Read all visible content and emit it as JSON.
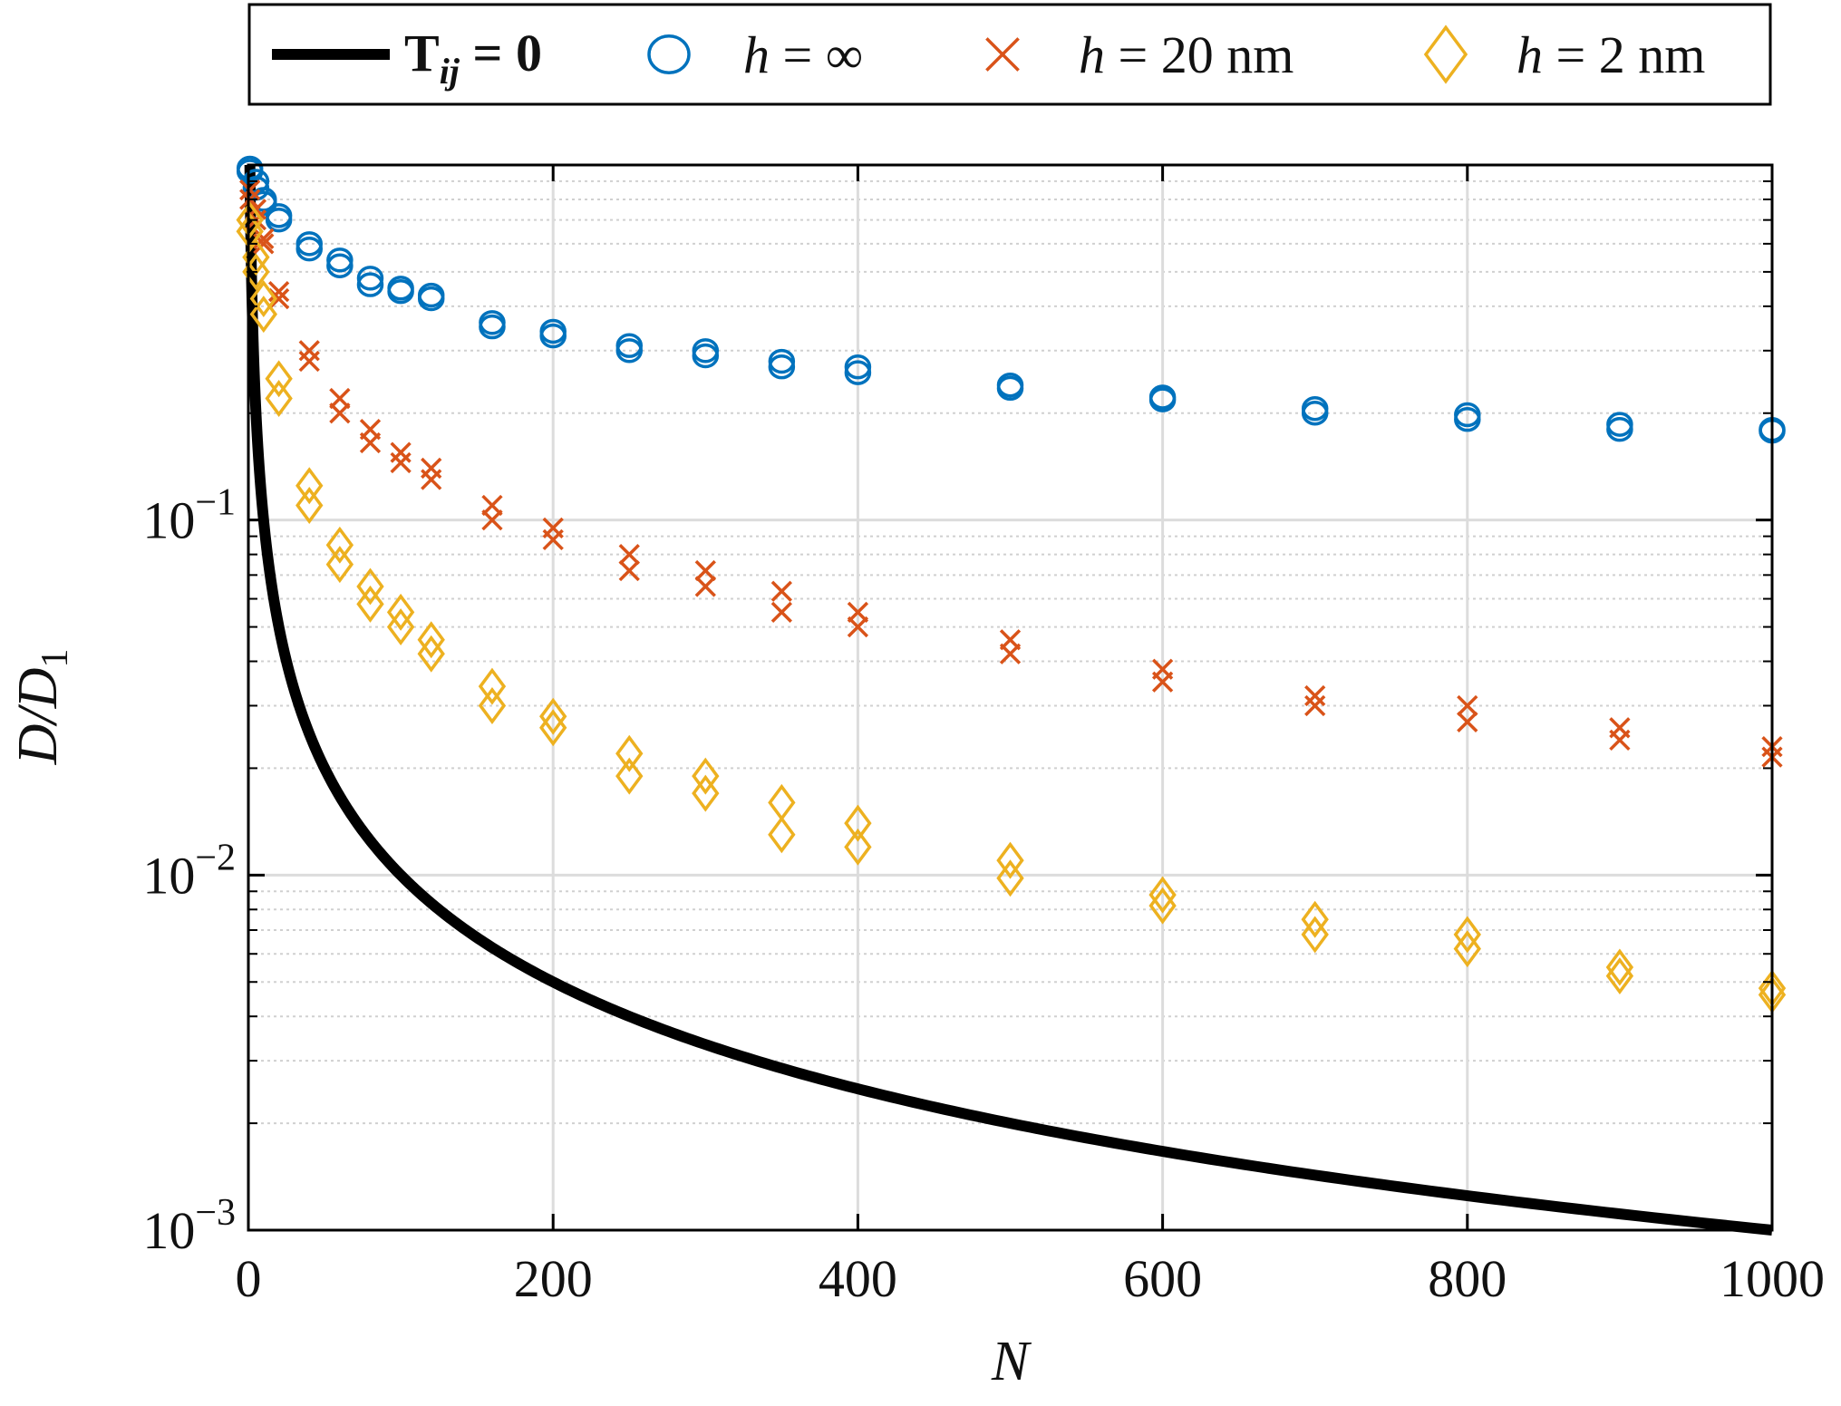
{
  "chart_data": {
    "type": "scatter",
    "xlabel": "N",
    "ylabel": "D/D_1",
    "ylabel_parts": {
      "main": "D/D",
      "sub": "1"
    },
    "x_scale": "linear",
    "y_scale": "log",
    "xlim": [
      0,
      1000
    ],
    "ylim": [
      0.001,
      1
    ],
    "x_ticks": [
      0,
      200,
      400,
      600,
      800,
      1000
    ],
    "x_tick_labels": [
      "0",
      "200",
      "400",
      "600",
      "800",
      "1000"
    ],
    "y_ticks": [
      0.001,
      0.01,
      0.1
    ],
    "y_tick_labels": [
      {
        "base": "10",
        "exp": "−3"
      },
      {
        "base": "10",
        "exp": "−2"
      },
      {
        "base": "10",
        "exp": "−1"
      }
    ],
    "grid": true,
    "legend_position": "top-outside",
    "series": [
      {
        "name": "T_ij = 0",
        "legend": {
          "main": "T",
          "sub": "ij",
          "rest": " = 0"
        },
        "kind": "line",
        "formula": "1/N",
        "color": "#000000",
        "x_range": [
          1,
          1000
        ]
      },
      {
        "name": "h = ∞",
        "legend": {
          "italic": "h",
          "rest": " = ∞"
        },
        "kind": "marker",
        "marker": "circle",
        "color": "#0072BD",
        "points": [
          [
            1,
            0.98
          ],
          [
            1,
            0.96
          ],
          [
            5,
            0.9
          ],
          [
            5,
            0.86
          ],
          [
            10,
            0.8
          ],
          [
            10,
            0.78
          ],
          [
            20,
            0.72
          ],
          [
            20,
            0.7
          ],
          [
            40,
            0.6
          ],
          [
            40,
            0.58
          ],
          [
            60,
            0.54
          ],
          [
            60,
            0.52
          ],
          [
            80,
            0.48
          ],
          [
            80,
            0.46
          ],
          [
            100,
            0.45
          ],
          [
            100,
            0.44
          ],
          [
            120,
            0.43
          ],
          [
            120,
            0.42
          ],
          [
            160,
            0.36
          ],
          [
            160,
            0.35
          ],
          [
            200,
            0.34
          ],
          [
            200,
            0.33
          ],
          [
            250,
            0.31
          ],
          [
            250,
            0.3
          ],
          [
            300,
            0.3
          ],
          [
            300,
            0.29
          ],
          [
            350,
            0.28
          ],
          [
            350,
            0.27
          ],
          [
            400,
            0.27
          ],
          [
            400,
            0.26
          ],
          [
            500,
            0.24
          ],
          [
            500,
            0.235
          ],
          [
            600,
            0.222
          ],
          [
            600,
            0.218
          ],
          [
            700,
            0.206
          ],
          [
            700,
            0.2
          ],
          [
            800,
            0.198
          ],
          [
            800,
            0.192
          ],
          [
            900,
            0.186
          ],
          [
            900,
            0.18
          ],
          [
            1000,
            0.18
          ],
          [
            1000,
            0.178
          ]
        ]
      },
      {
        "name": "h = 20 nm",
        "legend": {
          "italic": "h",
          "rest": " = 20 nm"
        },
        "kind": "marker",
        "marker": "x",
        "color": "#D95319",
        "points": [
          [
            1,
            0.85
          ],
          [
            1,
            0.8
          ],
          [
            5,
            0.75
          ],
          [
            5,
            0.7
          ],
          [
            10,
            0.62
          ],
          [
            10,
            0.6
          ],
          [
            20,
            0.44
          ],
          [
            20,
            0.42
          ],
          [
            40,
            0.3
          ],
          [
            40,
            0.28
          ],
          [
            60,
            0.22
          ],
          [
            60,
            0.2
          ],
          [
            80,
            0.18
          ],
          [
            80,
            0.165
          ],
          [
            100,
            0.155
          ],
          [
            100,
            0.145
          ],
          [
            120,
            0.14
          ],
          [
            120,
            0.13
          ],
          [
            160,
            0.11
          ],
          [
            160,
            0.1
          ],
          [
            200,
            0.095
          ],
          [
            200,
            0.088
          ],
          [
            250,
            0.08
          ],
          [
            250,
            0.072
          ],
          [
            300,
            0.072
          ],
          [
            300,
            0.065
          ],
          [
            350,
            0.063
          ],
          [
            350,
            0.055
          ],
          [
            400,
            0.055
          ],
          [
            400,
            0.05
          ],
          [
            500,
            0.046
          ],
          [
            500,
            0.042
          ],
          [
            600,
            0.038
          ],
          [
            600,
            0.035
          ],
          [
            700,
            0.032
          ],
          [
            700,
            0.03
          ],
          [
            800,
            0.03
          ],
          [
            800,
            0.027
          ],
          [
            900,
            0.026
          ],
          [
            900,
            0.024
          ],
          [
            1000,
            0.023
          ],
          [
            1000,
            0.0215
          ]
        ]
      },
      {
        "name": "h = 2 nm",
        "legend": {
          "italic": "h",
          "rest": " = 2 nm"
        },
        "kind": "marker",
        "marker": "diamond",
        "color": "#EDB120",
        "points": [
          [
            1,
            0.7
          ],
          [
            1,
            0.65
          ],
          [
            5,
            0.55
          ],
          [
            5,
            0.5
          ],
          [
            10,
            0.42
          ],
          [
            10,
            0.38
          ],
          [
            20,
            0.25
          ],
          [
            20,
            0.22
          ],
          [
            40,
            0.125
          ],
          [
            40,
            0.11
          ],
          [
            60,
            0.085
          ],
          [
            60,
            0.075
          ],
          [
            80,
            0.065
          ],
          [
            80,
            0.058
          ],
          [
            100,
            0.055
          ],
          [
            100,
            0.05
          ],
          [
            120,
            0.046
          ],
          [
            120,
            0.042
          ],
          [
            160,
            0.034
          ],
          [
            160,
            0.03
          ],
          [
            200,
            0.028
          ],
          [
            200,
            0.026
          ],
          [
            250,
            0.022
          ],
          [
            250,
            0.019
          ],
          [
            300,
            0.019
          ],
          [
            300,
            0.017
          ],
          [
            350,
            0.016
          ],
          [
            350,
            0.013
          ],
          [
            400,
            0.014
          ],
          [
            400,
            0.012
          ],
          [
            500,
            0.011
          ],
          [
            500,
            0.0098
          ],
          [
            600,
            0.0088
          ],
          [
            600,
            0.0082
          ],
          [
            700,
            0.0075
          ],
          [
            700,
            0.0068
          ],
          [
            800,
            0.0068
          ],
          [
            800,
            0.0062
          ],
          [
            900,
            0.0055
          ],
          [
            900,
            0.0052
          ],
          [
            1000,
            0.0048
          ],
          [
            1000,
            0.0046
          ]
        ]
      }
    ]
  }
}
